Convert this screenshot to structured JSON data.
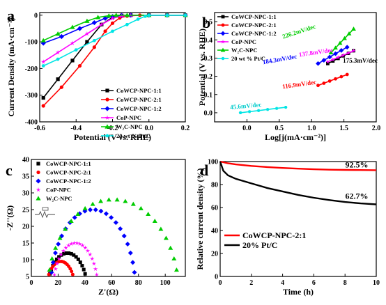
{
  "chart_data": [
    {
      "panel": "a",
      "type": "line",
      "xlabel": "Potential (V vs. RHE)",
      "ylabel": "Current Density (mA·cm⁻²)",
      "xlim": [
        -0.6,
        0.2
      ],
      "ylim": [
        -400,
        10
      ],
      "xticks": [
        "-0.6",
        "-0.4",
        "-0.2",
        "0.0",
        "0.2"
      ],
      "yticks": [
        "0",
        "-100",
        "-200",
        "-300",
        "-400"
      ],
      "legend_position": "bottom-right",
      "series": [
        {
          "name": "CoWCP-NPC-1:1",
          "color": "#000000",
          "marker": "square",
          "x": [
            -0.58,
            -0.5,
            -0.42,
            -0.34,
            -0.26,
            -0.2,
            -0.15,
            -0.1,
            0.0,
            0.1,
            0.2
          ],
          "y": [
            -310,
            -240,
            -170,
            -100,
            -35,
            -8,
            -1,
            0,
            0,
            0,
            0
          ]
        },
        {
          "name": "CoWCP-NPC-2:1",
          "color": "#ff0000",
          "marker": "circle",
          "x": [
            -0.58,
            -0.48,
            -0.38,
            -0.3,
            -0.24,
            -0.2,
            -0.16,
            -0.12,
            -0.05,
            0.1,
            0.2
          ],
          "y": [
            -340,
            -270,
            -190,
            -120,
            -60,
            -30,
            -10,
            -3,
            0,
            0,
            0
          ]
        },
        {
          "name": "CoWCP-NPC-1:2",
          "color": "#0000ff",
          "marker": "diamond",
          "x": [
            -0.58,
            -0.48,
            -0.38,
            -0.3,
            -0.24,
            -0.2,
            -0.15,
            -0.1,
            0.0,
            0.1,
            0.2
          ],
          "y": [
            -105,
            -80,
            -50,
            -28,
            -12,
            -5,
            -1,
            0,
            0,
            0,
            0
          ]
        },
        {
          "name": "CoP-NPC",
          "color": "#ff00ff",
          "marker": "star",
          "x": [
            -0.58,
            -0.5,
            -0.42,
            -0.34,
            -0.26,
            -0.2,
            -0.15,
            -0.1,
            0.0,
            0.1,
            0.2
          ],
          "y": [
            -175,
            -140,
            -105,
            -70,
            -35,
            -12,
            -3,
            0,
            0,
            0,
            0
          ]
        },
        {
          "name": "W₂C-NPC",
          "color": "#00cc00",
          "marker": "triangle",
          "x": [
            -0.58,
            -0.5,
            -0.42,
            -0.34,
            -0.28,
            -0.22,
            -0.18,
            -0.12,
            0.0,
            0.1,
            0.2
          ],
          "y": [
            -95,
            -70,
            -45,
            -22,
            -8,
            -2,
            0,
            0,
            0,
            0,
            0
          ]
        },
        {
          "name": "20 wt % Pt/C",
          "color": "#00e5e5",
          "marker": "hexagon",
          "x": [
            -0.58,
            -0.5,
            -0.4,
            -0.3,
            -0.2,
            -0.12,
            -0.06,
            -0.02,
            0.0,
            0.1,
            0.2
          ],
          "y": [
            -190,
            -165,
            -130,
            -95,
            -60,
            -35,
            -15,
            -4,
            0,
            0,
            0
          ]
        }
      ]
    },
    {
      "panel": "b",
      "type": "line",
      "xlabel": "Log[j(mA·cm⁻²)]",
      "ylabel": "Potential (V vs. RHE)",
      "xlim": [
        -0.5,
        2.0
      ],
      "ylim": [
        -0.05,
        0.55
      ],
      "xticks": [
        "0.0",
        "0.5",
        "1.0",
        "1.5",
        "2.0"
      ],
      "yticks": [
        "0.0",
        "0.1",
        "0.2",
        "0.3",
        "0.4",
        "0.5"
      ],
      "legend_position": "top-left",
      "series": [
        {
          "name": "CoWCP-NPC-1:1",
          "color": "#000000",
          "marker": "square",
          "x": [
            1.25,
            1.65
          ],
          "y": [
            0.27,
            0.34
          ]
        },
        {
          "name": "CoWCP-NPC-2:1",
          "color": "#ff0000",
          "marker": "circle",
          "x": [
            1.1,
            1.55
          ],
          "y": [
            0.15,
            0.21
          ]
        },
        {
          "name": "CoWCP-NPC-1:2",
          "color": "#0000ff",
          "marker": "diamond",
          "x": [
            1.1,
            1.55
          ],
          "y": [
            0.27,
            0.36
          ]
        },
        {
          "name": "CoP-NPC",
          "color": "#ff00ff",
          "marker": "star",
          "x": [
            1.25,
            1.65
          ],
          "y": [
            0.28,
            0.34
          ]
        },
        {
          "name": "W₂C-NPC",
          "color": "#00cc00",
          "marker": "triangle",
          "x": [
            1.3,
            1.65
          ],
          "y": [
            0.33,
            0.46
          ]
        },
        {
          "name": "20 wt % Pt/C",
          "color": "#00e5e5",
          "marker": "hexagon",
          "x": [
            -0.1,
            0.6
          ],
          "y": [
            0.0,
            0.03
          ]
        }
      ],
      "annotations": [
        {
          "text": "175.3mV/dec",
          "color": "#000000"
        },
        {
          "text": "116.9mV/dec",
          "color": "#ff0000"
        },
        {
          "text": "184.3mV/dec",
          "color": "#0000ff"
        },
        {
          "text": "137.8mV/dec",
          "color": "#ff00ff"
        },
        {
          "text": "226.2mV/dec",
          "color": "#00cc00"
        },
        {
          "text": "45.6mV/dec",
          "color": "#00cccc"
        }
      ]
    },
    {
      "panel": "c",
      "type": "scatter",
      "xlabel": "Z'(Ω)",
      "ylabel": "-Z''(Ω)",
      "xlim": [
        0,
        115
      ],
      "ylim": [
        5,
        40
      ],
      "xticks": [
        "0",
        "20",
        "40",
        "60",
        "80",
        "100"
      ],
      "yticks": [
        "5",
        "10",
        "15",
        "20",
        "25",
        "30",
        "35",
        "40"
      ],
      "legend_position": "top-left",
      "series": [
        {
          "name": "CoWCP-NPC-1:1",
          "color": "#000000",
          "marker": "square",
          "center": 27,
          "radius": 15,
          "height": 12
        },
        {
          "name": "CoWCP-NPC-2:1",
          "color": "#ff0000",
          "marker": "circle",
          "center": 22,
          "radius": 11,
          "height": 9.5
        },
        {
          "name": "CoWCP-NPC-1:2",
          "color": "#0000ff",
          "marker": "diamond",
          "center": 46,
          "radius": 32,
          "height": 25
        },
        {
          "name": "CoP-NPC",
          "color": "#ff00ff",
          "marker": "star",
          "center": 33,
          "radius": 17,
          "height": 15
        },
        {
          "name": "W₂C-NPC",
          "color": "#00cc00",
          "marker": "triangle",
          "center": 61,
          "radius": 49,
          "height": 28
        }
      ]
    },
    {
      "panel": "d",
      "type": "line",
      "xlabel": "Time (h)",
      "ylabel": "Relative current density (%)",
      "xlim": [
        0,
        10
      ],
      "ylim": [
        0,
        100
      ],
      "xticks": [
        "0",
        "2",
        "4",
        "6",
        "8",
        "10"
      ],
      "yticks": [
        "0",
        "20",
        "40",
        "60",
        "80",
        "100"
      ],
      "legend_position": "bottom-left",
      "series": [
        {
          "name": "CoWCP-NPC-2:1",
          "color": "#ff0000",
          "end_label": "92.5%",
          "x": [
            0,
            0.5,
            1,
            2,
            3,
            4,
            5,
            6,
            7,
            8,
            9,
            10
          ],
          "y": [
            100,
            98.5,
            97.5,
            96.2,
            95.2,
            94.4,
            93.8,
            93.3,
            92.9,
            92.7,
            92.6,
            92.5
          ]
        },
        {
          "name": "20% Pt/C",
          "color": "#000000",
          "end_label": "62.7%",
          "x": [
            0,
            0.2,
            0.5,
            1,
            2,
            3,
            4,
            5,
            6,
            7,
            8,
            9,
            10
          ],
          "y": [
            100,
            92,
            88,
            85,
            81,
            77,
            74,
            71,
            68.5,
            66.5,
            64.8,
            63.6,
            62.7
          ]
        }
      ]
    }
  ],
  "panel_labels": [
    "a",
    "b",
    "c",
    "d"
  ]
}
